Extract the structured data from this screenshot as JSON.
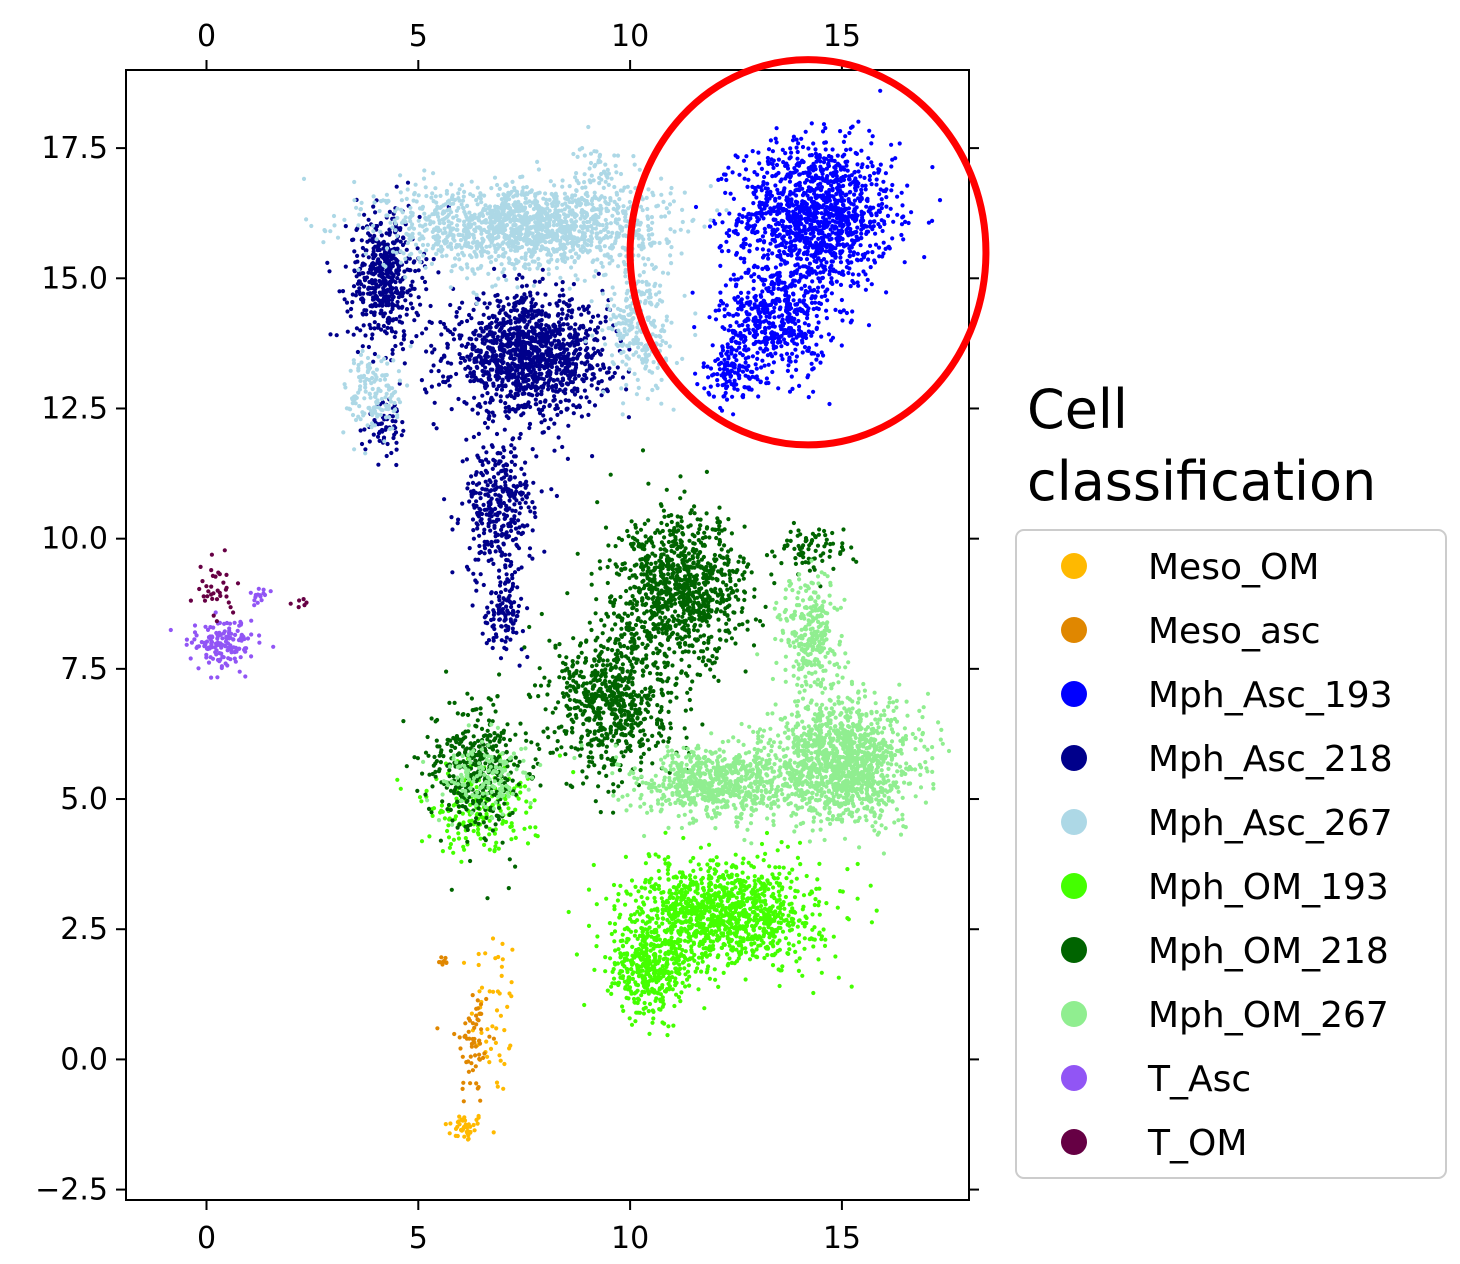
{
  "chart_data": {
    "type": "scatter",
    "title": "",
    "xlabel": "",
    "ylabel": "",
    "xlim": [
      -1.9,
      18.0
    ],
    "ylim": [
      -2.7,
      19.0
    ],
    "xticks": [
      0,
      5,
      10,
      15
    ],
    "yticks": [
      -2.5,
      0.0,
      2.5,
      5.0,
      7.5,
      10.0,
      12.5,
      15.0,
      17.5
    ],
    "xtick_labels": [
      "0",
      "5",
      "10",
      "15"
    ],
    "ytick_labels": [
      "−2.5",
      "0.0",
      "2.5",
      "5.0",
      "7.5",
      "10.0",
      "12.5",
      "15.0",
      "17.5"
    ],
    "grid": false,
    "legend": {
      "title": "Cell classification",
      "placement": "right"
    },
    "series": [
      {
        "name": "Meso_OM",
        "color": "#FFB900",
        "clusters": [
          {
            "center": [
              6.1,
              -1.3
            ],
            "spread": [
              0.35,
              0.2
            ],
            "n": 40
          },
          {
            "center": [
              6.8,
              0.9
            ],
            "spread": [
              0.4,
              1.2
            ],
            "n": 50
          }
        ]
      },
      {
        "name": "Meso_asc",
        "color": "#E08700",
        "clusters": [
          {
            "center": [
              6.3,
              0.3
            ],
            "spread": [
              0.3,
              0.9
            ],
            "n": 60
          },
          {
            "center": [
              5.6,
              1.9
            ],
            "spread": [
              0.1,
              0.1
            ],
            "n": 8
          }
        ]
      },
      {
        "name": "Mph_Asc_193",
        "color": "#0000FF",
        "clusters": [
          {
            "center": [
              14.4,
              16.2
            ],
            "spread": [
              1.3,
              1.0
            ],
            "n": 1300
          },
          {
            "center": [
              13.4,
              14.2
            ],
            "spread": [
              0.9,
              0.8
            ],
            "n": 500
          },
          {
            "center": [
              12.4,
              13.2
            ],
            "spread": [
              0.5,
              0.4
            ],
            "n": 120
          }
        ]
      },
      {
        "name": "Mph_Asc_218",
        "color": "#00008B",
        "clusters": [
          {
            "center": [
              4.2,
              15.0
            ],
            "spread": [
              0.6,
              0.9
            ],
            "n": 500
          },
          {
            "center": [
              7.6,
              13.5
            ],
            "spread": [
              1.3,
              0.8
            ],
            "n": 1300
          },
          {
            "center": [
              6.9,
              10.6
            ],
            "spread": [
              0.6,
              0.9
            ],
            "n": 350
          },
          {
            "center": [
              7.0,
              8.6
            ],
            "spread": [
              0.35,
              0.5
            ],
            "n": 120
          },
          {
            "center": [
              4.3,
              12.2
            ],
            "spread": [
              0.4,
              0.4
            ],
            "n": 60
          }
        ]
      },
      {
        "name": "Mph_Asc_267",
        "color": "#ADD8E6",
        "clusters": [
          {
            "center": [
              7.5,
              16.0
            ],
            "spread": [
              2.3,
              0.6
            ],
            "n": 1500
          },
          {
            "center": [
              4.0,
              12.8
            ],
            "spread": [
              0.5,
              0.6
            ],
            "n": 150
          },
          {
            "center": [
              10.2,
              14.0
            ],
            "spread": [
              0.6,
              0.9
            ],
            "n": 250
          },
          {
            "center": [
              9.3,
              17.2
            ],
            "spread": [
              0.35,
              0.3
            ],
            "n": 40
          }
        ]
      },
      {
        "name": "Mph_OM_193",
        "color": "#44FF00",
        "clusters": [
          {
            "center": [
              12.2,
              2.8
            ],
            "spread": [
              1.6,
              0.7
            ],
            "n": 1200
          },
          {
            "center": [
              10.5,
              1.7
            ],
            "spread": [
              0.7,
              0.6
            ],
            "n": 400
          },
          {
            "center": [
              6.4,
              4.8
            ],
            "spread": [
              1.0,
              0.6
            ],
            "n": 200
          }
        ]
      },
      {
        "name": "Mph_OM_218",
        "color": "#006400",
        "clusters": [
          {
            "center": [
              11.2,
              9.0
            ],
            "spread": [
              1.1,
              1.0
            ],
            "n": 1000
          },
          {
            "center": [
              9.6,
              6.9
            ],
            "spread": [
              1.0,
              1.0
            ],
            "n": 700
          },
          {
            "center": [
              6.4,
              5.6
            ],
            "spread": [
              0.8,
              0.9
            ],
            "n": 400
          },
          {
            "center": [
              14.3,
              9.8
            ],
            "spread": [
              0.6,
              0.3
            ],
            "n": 80
          }
        ]
      },
      {
        "name": "Mph_OM_267",
        "color": "#90EE90",
        "clusters": [
          {
            "center": [
              15.0,
              5.7
            ],
            "spread": [
              1.2,
              0.8
            ],
            "n": 1300
          },
          {
            "center": [
              12.0,
              5.3
            ],
            "spread": [
              1.3,
              0.5
            ],
            "n": 700
          },
          {
            "center": [
              14.3,
              8.0
            ],
            "spread": [
              0.5,
              0.9
            ],
            "n": 300
          },
          {
            "center": [
              6.6,
              5.4
            ],
            "spread": [
              0.8,
              0.5
            ],
            "n": 150
          }
        ]
      },
      {
        "name": "T_Asc",
        "color": "#9155F5",
        "clusters": [
          {
            "center": [
              0.4,
              8.0
            ],
            "spread": [
              0.5,
              0.35
            ],
            "n": 150
          },
          {
            "center": [
              1.2,
              8.9
            ],
            "spread": [
              0.2,
              0.15
            ],
            "n": 15
          }
        ]
      },
      {
        "name": "T_OM",
        "color": "#660044",
        "clusters": [
          {
            "center": [
              0.2,
              8.9
            ],
            "spread": [
              0.35,
              0.5
            ],
            "n": 35
          },
          {
            "center": [
              2.2,
              8.8
            ],
            "spread": [
              0.3,
              0.08
            ],
            "n": 6
          }
        ]
      }
    ],
    "annotation": {
      "shape": "ellipse",
      "color": "#FF0000",
      "center": [
        14.2,
        15.5
      ],
      "radii": [
        4.2,
        3.7
      ]
    }
  }
}
